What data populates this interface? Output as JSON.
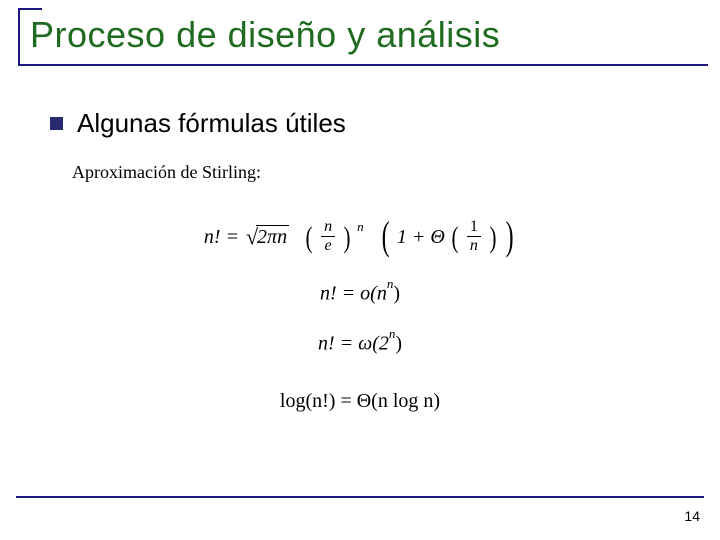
{
  "slide": {
    "title": "Proceso de diseño y análisis",
    "bullet": "Algunas fórmulas útiles",
    "stirling_label": "Aproximación de Stirling:",
    "page_number": "14"
  },
  "formulas": {
    "eq1_lhs": "n! = ",
    "eq1_sqrt_radicand": "2πn",
    "eq1_frac1_num": "n",
    "eq1_frac1_den": "e",
    "eq1_exp1": "n",
    "eq1_text_1plus": "1 + Θ",
    "eq1_frac2_num": "1",
    "eq1_frac2_den": "n",
    "eq2_text": "n! = o(n",
    "eq2_exp": "n",
    "eq2_close": ")",
    "eq3_text": "n! = ω(2",
    "eq3_exp": "n",
    "eq3_close": ")",
    "eq4_text": "log(n!) = Θ(n log n)"
  },
  "style": {
    "title_color": "#1f6b1f",
    "rule_color": "#1a1a80",
    "bullet_color": "#2a2a70",
    "background": "#ffffff",
    "title_fontsize": 36,
    "bullet_fontsize": 26,
    "formula_fontsize": 20,
    "formula_font": "Georgia, Times New Roman, serif"
  }
}
